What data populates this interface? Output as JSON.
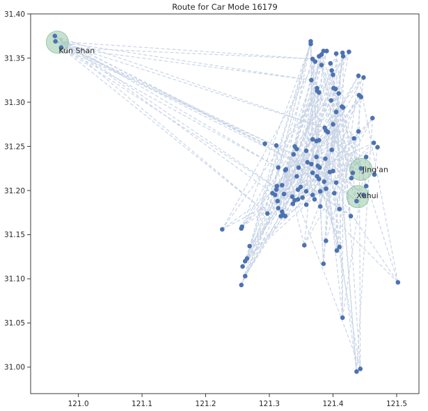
{
  "chart_data": {
    "type": "scatter",
    "title": "Route for Car Mode 16179",
    "xlabel": "",
    "ylabel": "",
    "xlim": [
      120.925,
      121.535
    ],
    "ylim": [
      30.97,
      31.4
    ],
    "xticks": [
      121.0,
      121.1,
      121.2,
      121.3,
      121.4,
      121.5
    ],
    "xtick_labels": [
      "121.0",
      "121.1",
      "121.2",
      "121.3",
      "121.4",
      "121.5"
    ],
    "yticks": [
      31.0,
      31.05,
      31.1,
      31.15,
      31.2,
      31.25,
      31.3,
      31.35,
      31.4
    ],
    "ytick_labels": [
      "31.00",
      "31.05",
      "31.10",
      "31.15",
      "31.20",
      "31.25",
      "31.30",
      "31.35",
      "31.40"
    ],
    "grid": false,
    "colors": {
      "points": "#4c72b0",
      "route": "#c8d4e6",
      "highlight": "#8fc3a0",
      "axis": "#262626"
    },
    "highlight_areas": [
      {
        "name": "Kun Shan",
        "x": 120.967,
        "y": 31.368
      },
      {
        "name": "Jing'an",
        "x": 121.444,
        "y": 31.224
      },
      {
        "name": "Xuhui",
        "x": 121.439,
        "y": 31.193
      }
    ],
    "points": [
      {
        "x": 120.963,
        "y": 31.375
      },
      {
        "x": 120.964,
        "y": 31.369
      },
      {
        "x": 120.973,
        "y": 31.362
      },
      {
        "x": 121.365,
        "y": 31.369
      },
      {
        "x": 121.365,
        "y": 31.366
      },
      {
        "x": 121.385,
        "y": 31.358
      },
      {
        "x": 121.39,
        "y": 31.358
      },
      {
        "x": 121.378,
        "y": 31.352
      },
      {
        "x": 121.382,
        "y": 31.354
      },
      {
        "x": 121.405,
        "y": 31.355
      },
      {
        "x": 121.415,
        "y": 31.356
      },
      {
        "x": 121.416,
        "y": 31.352
      },
      {
        "x": 121.425,
        "y": 31.357
      },
      {
        "x": 121.368,
        "y": 31.349
      },
      {
        "x": 121.372,
        "y": 31.346
      },
      {
        "x": 121.396,
        "y": 31.344
      },
      {
        "x": 121.382,
        "y": 31.342
      },
      {
        "x": 121.398,
        "y": 31.336
      },
      {
        "x": 121.4,
        "y": 31.331
      },
      {
        "x": 121.44,
        "y": 31.33
      },
      {
        "x": 121.448,
        "y": 31.328
      },
      {
        "x": 121.366,
        "y": 31.325
      },
      {
        "x": 121.375,
        "y": 31.316
      },
      {
        "x": 121.375,
        "y": 31.313
      },
      {
        "x": 121.401,
        "y": 31.316
      },
      {
        "x": 121.404,
        "y": 31.315
      },
      {
        "x": 121.409,
        "y": 31.31
      },
      {
        "x": 121.378,
        "y": 31.311
      },
      {
        "x": 121.441,
        "y": 31.308
      },
      {
        "x": 121.444,
        "y": 31.306
      },
      {
        "x": 121.397,
        "y": 31.302
      },
      {
        "x": 121.414,
        "y": 31.295
      },
      {
        "x": 121.416,
        "y": 31.294
      },
      {
        "x": 121.405,
        "y": 31.289
      },
      {
        "x": 121.462,
        "y": 31.282
      },
      {
        "x": 121.4,
        "y": 31.275
      },
      {
        "x": 121.387,
        "y": 31.271
      },
      {
        "x": 121.389,
        "y": 31.268
      },
      {
        "x": 121.392,
        "y": 31.266
      },
      {
        "x": 121.44,
        "y": 31.267
      },
      {
        "x": 121.433,
        "y": 31.259
      },
      {
        "x": 121.464,
        "y": 31.254
      },
      {
        "x": 121.368,
        "y": 31.258
      },
      {
        "x": 121.374,
        "y": 31.256
      },
      {
        "x": 121.378,
        "y": 31.257
      },
      {
        "x": 121.293,
        "y": 31.253
      },
      {
        "x": 121.311,
        "y": 31.251
      },
      {
        "x": 121.34,
        "y": 31.25
      },
      {
        "x": 121.343,
        "y": 31.247
      },
      {
        "x": 121.358,
        "y": 31.245
      },
      {
        "x": 121.398,
        "y": 31.246
      },
      {
        "x": 121.47,
        "y": 31.249
      },
      {
        "x": 121.338,
        "y": 31.241
      },
      {
        "x": 121.374,
        "y": 31.238
      },
      {
        "x": 121.388,
        "y": 31.236
      },
      {
        "x": 121.452,
        "y": 31.238
      },
      {
        "x": 121.36,
        "y": 31.232
      },
      {
        "x": 121.366,
        "y": 31.23
      },
      {
        "x": 121.376,
        "y": 31.228
      },
      {
        "x": 121.379,
        "y": 31.226
      },
      {
        "x": 121.314,
        "y": 31.226
      },
      {
        "x": 121.326,
        "y": 31.224
      },
      {
        "x": 121.325,
        "y": 31.223
      },
      {
        "x": 121.346,
        "y": 31.226
      },
      {
        "x": 121.368,
        "y": 31.22
      },
      {
        "x": 121.395,
        "y": 31.221
      },
      {
        "x": 121.4,
        "y": 31.222
      },
      {
        "x": 121.431,
        "y": 31.22
      },
      {
        "x": 121.465,
        "y": 31.218
      },
      {
        "x": 121.343,
        "y": 31.216
      },
      {
        "x": 121.375,
        "y": 31.216
      },
      {
        "x": 121.378,
        "y": 31.213
      },
      {
        "x": 121.386,
        "y": 31.21
      },
      {
        "x": 121.405,
        "y": 31.209
      },
      {
        "x": 121.429,
        "y": 31.214
      },
      {
        "x": 121.312,
        "y": 31.205
      },
      {
        "x": 121.311,
        "y": 31.201
      },
      {
        "x": 121.32,
        "y": 31.206
      },
      {
        "x": 121.349,
        "y": 31.204
      },
      {
        "x": 121.345,
        "y": 31.201
      },
      {
        "x": 121.358,
        "y": 31.199
      },
      {
        "x": 121.38,
        "y": 31.199
      },
      {
        "x": 121.389,
        "y": 31.202
      },
      {
        "x": 121.452,
        "y": 31.205
      },
      {
        "x": 121.305,
        "y": 31.197
      },
      {
        "x": 121.309,
        "y": 31.195
      },
      {
        "x": 121.323,
        "y": 31.196
      },
      {
        "x": 121.336,
        "y": 31.193
      },
      {
        "x": 121.352,
        "y": 31.192
      },
      {
        "x": 121.368,
        "y": 31.195
      },
      {
        "x": 121.371,
        "y": 31.19
      },
      {
        "x": 121.402,
        "y": 31.197
      },
      {
        "x": 121.448,
        "y": 31.195
      },
      {
        "x": 121.313,
        "y": 31.188
      },
      {
        "x": 121.337,
        "y": 31.185
      },
      {
        "x": 121.34,
        "y": 31.189
      },
      {
        "x": 121.345,
        "y": 31.19
      },
      {
        "x": 121.358,
        "y": 31.184
      },
      {
        "x": 121.38,
        "y": 31.182
      },
      {
        "x": 121.41,
        "y": 31.179
      },
      {
        "x": 121.314,
        "y": 31.18
      },
      {
        "x": 121.32,
        "y": 31.176
      },
      {
        "x": 121.322,
        "y": 31.172
      },
      {
        "x": 121.325,
        "y": 31.171
      },
      {
        "x": 121.297,
        "y": 31.174
      },
      {
        "x": 121.318,
        "y": 31.171
      },
      {
        "x": 121.428,
        "y": 31.171
      },
      {
        "x": 121.226,
        "y": 31.156
      },
      {
        "x": 121.257,
        "y": 31.159
      },
      {
        "x": 121.256,
        "y": 31.157
      },
      {
        "x": 121.389,
        "y": 31.143
      },
      {
        "x": 121.269,
        "y": 31.137
      },
      {
        "x": 121.355,
        "y": 31.138
      },
      {
        "x": 121.41,
        "y": 31.136
      },
      {
        "x": 121.406,
        "y": 31.132
      },
      {
        "x": 121.265,
        "y": 31.123
      },
      {
        "x": 121.262,
        "y": 31.12
      },
      {
        "x": 121.385,
        "y": 31.117
      },
      {
        "x": 121.258,
        "y": 31.114
      },
      {
        "x": 121.262,
        "y": 31.103
      },
      {
        "x": 121.256,
        "y": 31.093
      },
      {
        "x": 121.502,
        "y": 31.096
      },
      {
        "x": 121.415,
        "y": 31.056
      },
      {
        "x": 121.443,
        "y": 30.998
      },
      {
        "x": 121.437,
        "y": 30.995
      },
      {
        "x": 121.437,
        "y": 31.188
      },
      {
        "x": 121.444,
        "y": 31.225
      }
    ],
    "route_order": [
      0,
      45,
      1,
      52,
      2,
      60,
      0,
      36,
      1,
      13,
      2,
      95,
      0,
      73,
      1,
      21,
      2,
      104,
      0,
      84,
      3,
      64,
      4,
      90,
      5,
      77,
      6,
      96,
      7,
      83,
      8,
      102,
      9,
      117,
      10,
      82,
      11,
      131,
      12,
      86,
      14,
      100,
      15,
      74,
      16,
      106,
      17,
      88,
      18,
      114,
      19,
      79,
      20,
      67,
      22,
      81,
      23,
      109,
      24,
      63,
      25,
      128,
      26,
      105,
      27,
      112,
      28,
      80,
      29,
      93,
      30,
      72,
      31,
      119,
      32,
      98,
      33,
      124,
      34,
      66,
      35,
      126,
      37,
      85,
      38,
      110,
      39,
      61,
      40,
      115,
      41,
      75,
      42,
      118,
      43,
      127,
      44,
      123,
      46,
      101,
      47,
      76,
      48,
      120,
      49,
      89,
      50,
      107,
      51,
      68,
      53,
      92,
      54,
      122,
      55,
      103,
      56,
      125,
      57,
      111,
      58,
      94,
      59,
      121,
      62,
      116,
      65,
      99,
      69,
      108,
      70,
      113,
      71,
      97,
      78,
      91,
      87,
      129,
      130,
      5,
      118,
      11,
      122,
      9,
      125,
      22,
      120,
      13,
      117,
      3,
      116,
      19,
      121,
      31,
      123,
      28,
      119,
      17,
      124,
      36,
      126,
      44,
      114,
      26,
      104,
      3,
      100,
      8,
      96,
      14,
      107,
      12,
      98,
      25,
      127,
      33,
      129,
      39,
      131,
      41,
      128,
      20,
      109,
      4,
      115,
      46,
      106,
      62,
      112,
      34,
      105,
      23
    ]
  },
  "legend": []
}
